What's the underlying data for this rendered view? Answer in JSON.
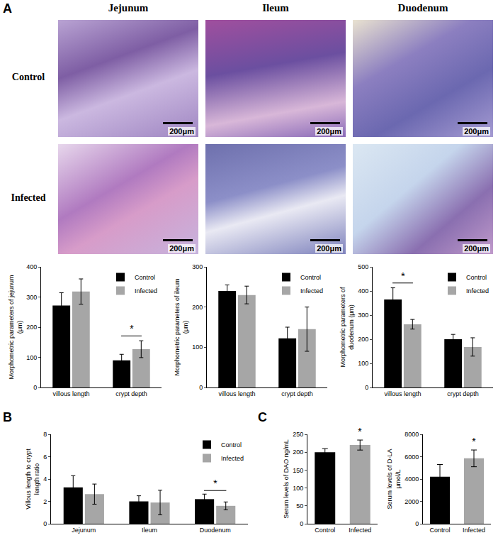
{
  "micrographs": {
    "columns": [
      "Jejunum",
      "Ileum",
      "Duodenum"
    ],
    "rows": [
      "Control",
      "Infected"
    ],
    "scale_bar": "200μm"
  },
  "chart_data": [
    {
      "panel": "A",
      "type": "bar",
      "y_label": "Morphometric parameters of jejunum (μm)",
      "categories": [
        "villous length",
        "crypt depth"
      ],
      "series": [
        {
          "name": "Control",
          "color": "#000000",
          "values": [
            272,
            90
          ],
          "errors": [
            42,
            20
          ]
        },
        {
          "name": "Infected",
          "color": "#a6a6a6",
          "values": [
            318,
            127
          ],
          "errors": [
            42,
            28
          ]
        }
      ],
      "ylim": [
        0,
        400
      ],
      "yticks": [
        0,
        100,
        200,
        300,
        400
      ],
      "legend": "top right",
      "annotations": [
        {
          "text": "*",
          "category": "crypt depth"
        }
      ]
    },
    {
      "panel": "A",
      "type": "bar",
      "y_label": "Morphometric parameters of ileum (μm)",
      "categories": [
        "villous length",
        "crypt depth"
      ],
      "series": [
        {
          "name": "Control",
          "color": "#000000",
          "values": [
            240,
            122
          ],
          "errors": [
            15,
            28
          ]
        },
        {
          "name": "Infected",
          "color": "#a6a6a6",
          "values": [
            230,
            145
          ],
          "errors": [
            22,
            55
          ]
        }
      ],
      "ylim": [
        0,
        300
      ],
      "yticks": [
        0,
        100,
        200,
        300
      ],
      "legend": "top right",
      "annotations": []
    },
    {
      "panel": "A",
      "type": "bar",
      "y_label": "Morphometric parameters of duodenum (μm)",
      "categories": [
        "villous length",
        "crypt depth"
      ],
      "series": [
        {
          "name": "Control",
          "color": "#000000",
          "values": [
            365,
            200
          ],
          "errors": [
            48,
            20
          ]
        },
        {
          "name": "Infected",
          "color": "#a6a6a6",
          "values": [
            262,
            168
          ],
          "errors": [
            20,
            38
          ]
        }
      ],
      "ylim": [
        0,
        500
      ],
      "yticks": [
        0,
        100,
        200,
        300,
        400,
        500
      ],
      "legend": "top right",
      "annotations": [
        {
          "text": "*",
          "category": "villous length"
        }
      ]
    },
    {
      "panel": "B",
      "type": "bar",
      "y_label": "Villous length to crypt length ratio",
      "categories": [
        "Jejunum",
        "Ileum",
        "Duodenum"
      ],
      "series": [
        {
          "name": "Control",
          "color": "#000000",
          "values": [
            3.25,
            2.0,
            2.2
          ],
          "errors": [
            1.05,
            0.5,
            0.45
          ]
        },
        {
          "name": "Infected",
          "color": "#a6a6a6",
          "values": [
            2.65,
            1.9,
            1.6
          ],
          "errors": [
            0.9,
            1.1,
            0.35
          ]
        }
      ],
      "ylim": [
        0,
        8
      ],
      "yticks": [
        0,
        2,
        4,
        6,
        8
      ],
      "legend": "top right",
      "annotations": [
        {
          "text": "*",
          "category": "Duodenum"
        }
      ]
    },
    {
      "panel": "C",
      "type": "bar",
      "y_label": "Serum levels of DAO ng/mL",
      "categories": [
        "Control",
        "Infected"
      ],
      "values": [
        200,
        220
      ],
      "errors": [
        10,
        14
      ],
      "colors": [
        "#000000",
        "#a6a6a6"
      ],
      "ylim": [
        0,
        250
      ],
      "yticks": [
        0,
        50,
        100,
        150,
        200,
        250
      ],
      "annotations": [
        {
          "text": "*",
          "category": "Infected"
        }
      ]
    },
    {
      "panel": "C",
      "type": "bar",
      "y_label": "Serum levels of D-LA μmol/L",
      "categories": [
        "Control",
        "Infected"
      ],
      "values": [
        4200,
        5850
      ],
      "errors": [
        1100,
        750
      ],
      "colors": [
        "#000000",
        "#a6a6a6"
      ],
      "ylim": [
        0,
        8000
      ],
      "yticks": [
        0,
        2000,
        4000,
        6000,
        8000
      ],
      "annotations": [
        {
          "text": "*",
          "category": "Infected"
        }
      ]
    }
  ]
}
